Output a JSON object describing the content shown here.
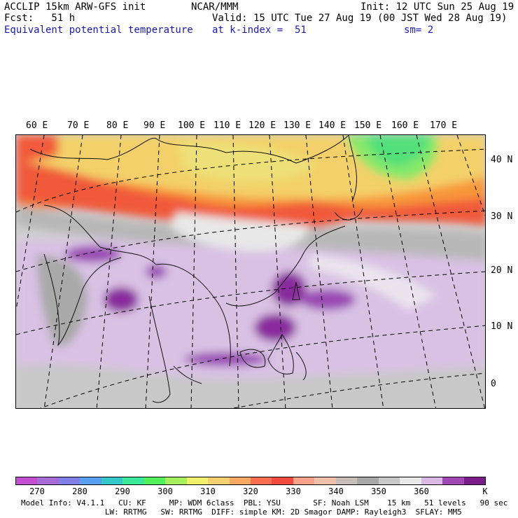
{
  "header": {
    "left1": "ACCLIP 15km ARW-GFS init",
    "left2": "Fcst:   51 h",
    "left3": "Equivalent potential temperature",
    "center1": "NCAR/MMM",
    "valid": "Valid: 15 UTC Tue 27 Aug 19 (00 JST Wed 28 Aug 19)",
    "kindex": "at k-index =  51",
    "init": "Init: 12 UTC Sun 25 Aug 19",
    "sm": "sm= 2"
  },
  "map": {
    "lon_labels": [
      "60 E",
      "70 E",
      "80 E",
      "90 E",
      "100 E",
      "110 E",
      "120 E",
      "130 E",
      "140 E",
      "150 E",
      "160 E",
      "170 E"
    ],
    "lat_labels": [
      "40 N",
      "30 N",
      "20 N",
      "10 N",
      "0"
    ]
  },
  "colorbar": {
    "unit": "K",
    "labels": [
      "270",
      "280",
      "290",
      "300",
      "310",
      "320",
      "330",
      "340",
      "350",
      "360"
    ],
    "colors": [
      "#c34fd0",
      "#a86ad6",
      "#7f7fe6",
      "#5a9ef0",
      "#34c8c8",
      "#3ce89a",
      "#52f05a",
      "#a6f060",
      "#f2f06a",
      "#f7d070",
      "#f7a863",
      "#f86e4e",
      "#f24a3c",
      "#f7a38c",
      "#f0c2aa",
      "#c8bdb8",
      "#a8a8a8",
      "#c8c8c8",
      "#e8e8e8",
      "#dcb8e6",
      "#a049b5",
      "#7a1c8a"
    ]
  },
  "footer": {
    "line1": "Model Info: V4.1.1   CU: KF     MP: WDM 6class  PBL: YSU       SF: Noah LSM    15 km   51 levels   90 sec",
    "line2": "   LW: RRTMG   SW: RRTMG  DIFF: simple KM: 2D Smagor DAMP: Rayleigh3  SFLAY: MM5"
  }
}
